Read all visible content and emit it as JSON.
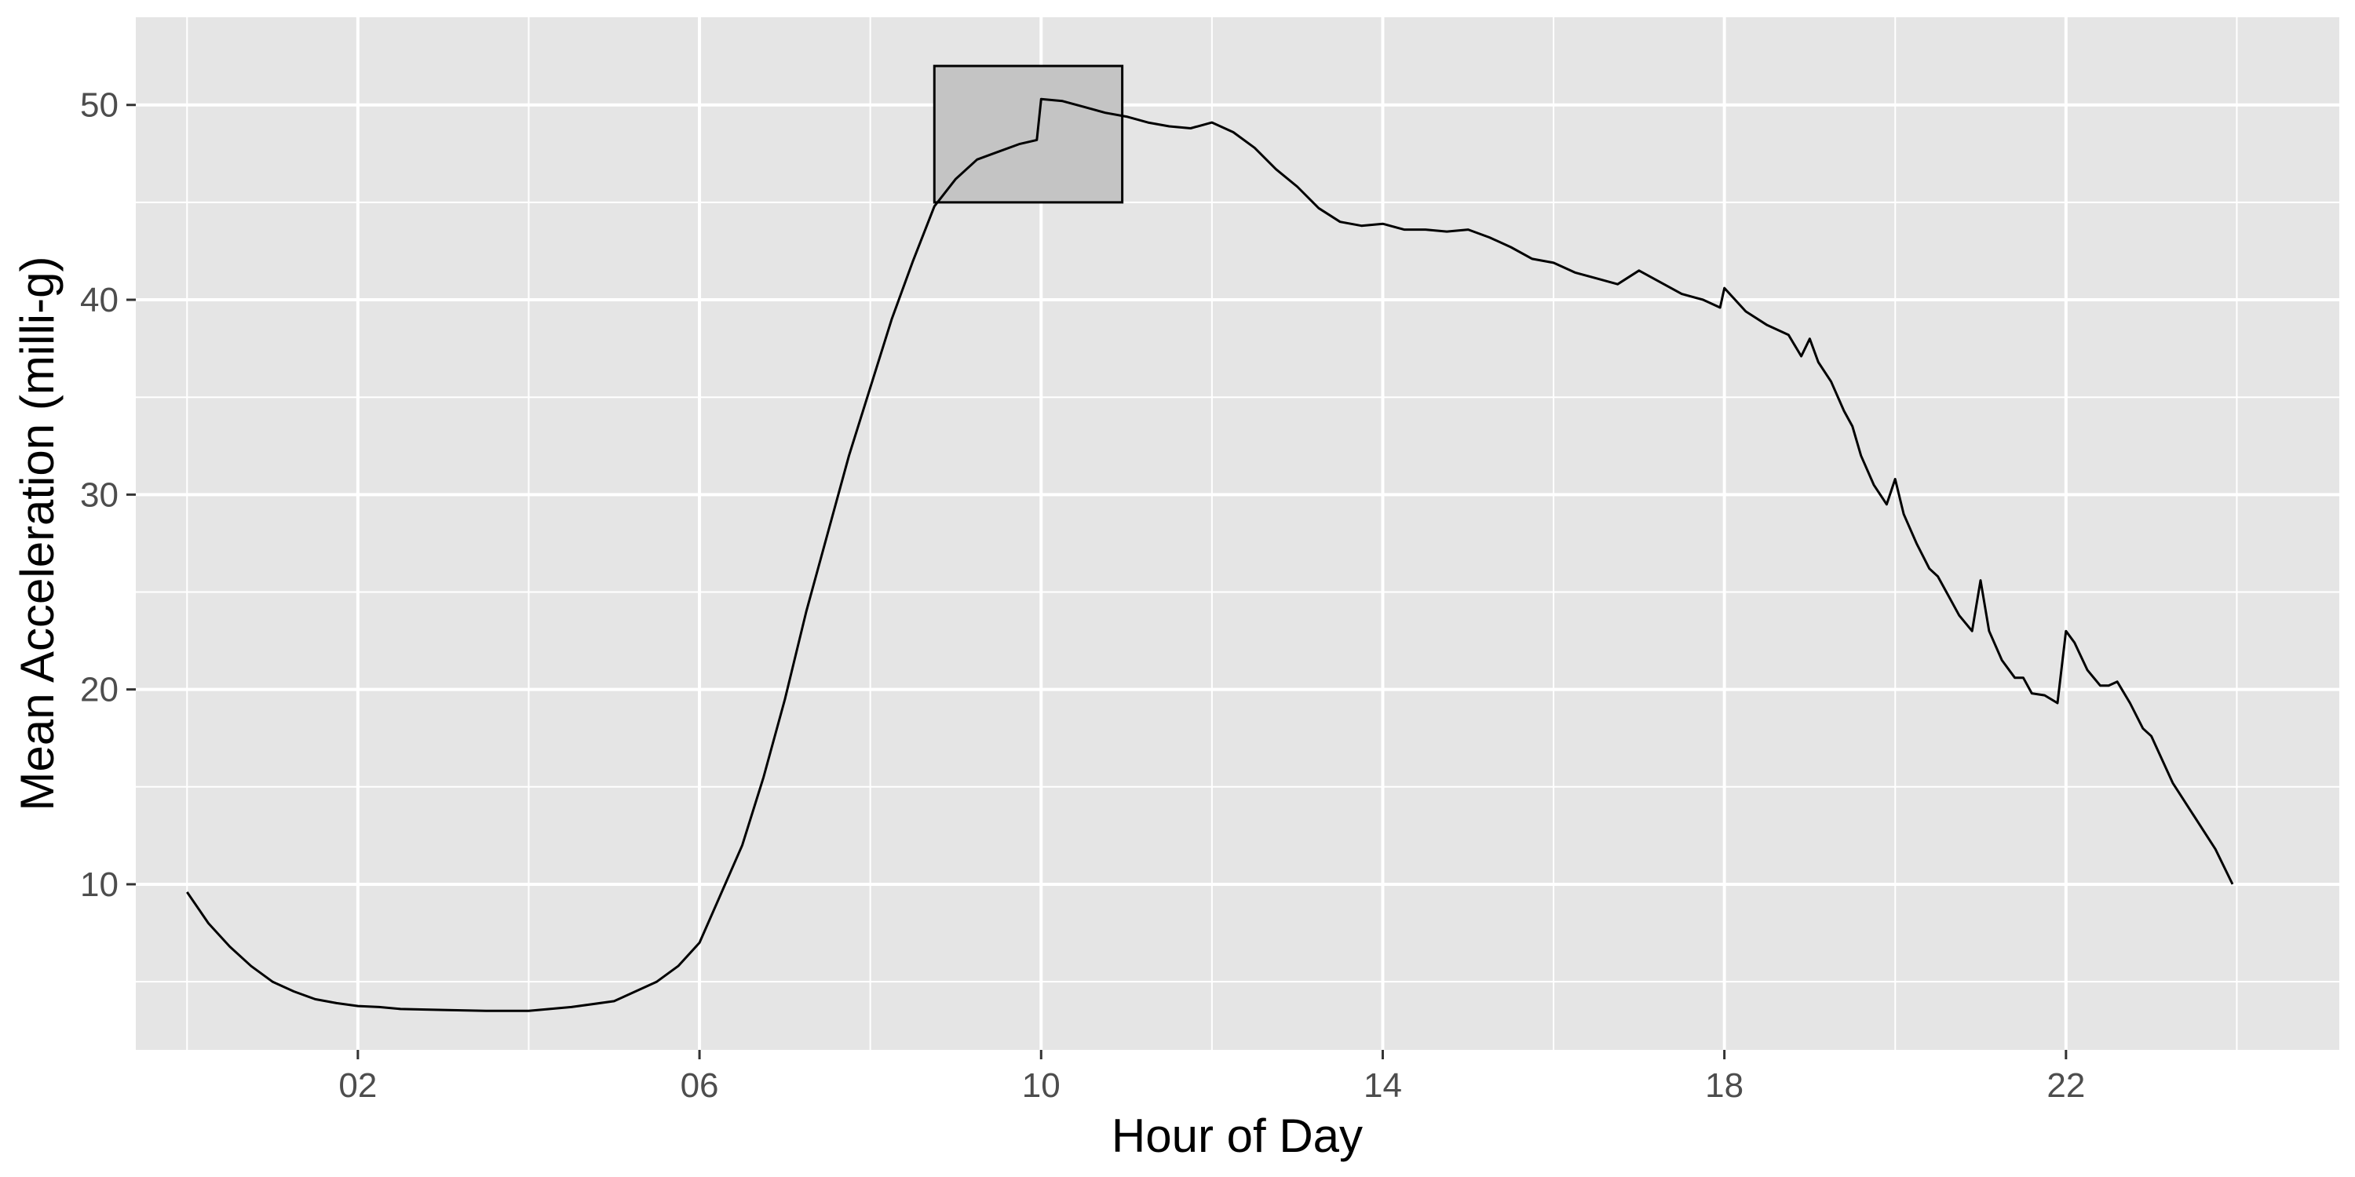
{
  "chart_data": {
    "type": "line",
    "title": "",
    "xlabel": "Hour of Day",
    "ylabel": "Mean Acceleration (milli-g)",
    "xlim": [
      -0.6,
      25.2
    ],
    "ylim": [
      1.5,
      54.5
    ],
    "x_ticks": [
      {
        "value": 2,
        "label": "02"
      },
      {
        "value": 6,
        "label": "06"
      },
      {
        "value": 10,
        "label": "10"
      },
      {
        "value": 14,
        "label": "14"
      },
      {
        "value": 18,
        "label": "18"
      },
      {
        "value": 22,
        "label": "22"
      }
    ],
    "x_minor_ticks": [
      0,
      4,
      8,
      12,
      16,
      20,
      24
    ],
    "y_ticks": [
      {
        "value": 10,
        "label": "10"
      },
      {
        "value": 20,
        "label": "20"
      },
      {
        "value": 30,
        "label": "30"
      },
      {
        "value": 40,
        "label": "40"
      },
      {
        "value": 50,
        "label": "50"
      }
    ],
    "y_minor_ticks": [
      5,
      15,
      25,
      35,
      45
    ],
    "grid": true,
    "panel_color": "#e5e5e5",
    "line_color": "#000000",
    "highlight_box": {
      "x": [
        8.75,
        10.95
      ],
      "y": [
        45,
        52
      ],
      "fill": "#c4c4c4",
      "stroke": "#000000"
    },
    "series": [
      {
        "x": [
          0.0,
          0.25,
          0.5,
          0.75,
          1.0,
          1.25,
          1.5,
          1.75,
          2.0,
          2.25,
          2.5,
          3.0,
          3.5,
          4.0,
          4.5,
          5.0,
          5.25,
          5.5,
          5.75,
          6.0,
          6.25,
          6.5,
          6.75,
          7.0,
          7.25,
          7.5,
          7.75,
          8.0,
          8.25,
          8.5,
          8.75,
          9.0,
          9.25,
          9.5,
          9.75,
          9.95,
          10.0,
          10.25,
          10.5,
          10.75,
          11.0,
          11.25,
          11.5,
          11.75,
          12.0,
          12.25,
          12.5,
          12.75,
          13.0,
          13.25,
          13.5,
          13.75,
          14.0,
          14.25,
          14.5,
          14.75,
          15.0,
          15.25,
          15.5,
          15.75,
          16.0,
          16.25,
          16.5,
          16.75,
          17.0,
          17.25,
          17.5,
          17.75,
          17.95,
          18.0,
          18.25,
          18.5,
          18.75,
          18.9,
          19.0,
          19.1,
          19.25,
          19.4,
          19.5,
          19.6,
          19.75,
          19.9,
          20.0,
          20.1,
          20.25,
          20.4,
          20.5,
          20.6,
          20.75,
          20.9,
          21.0,
          21.1,
          21.25,
          21.4,
          21.5,
          21.6,
          21.75,
          21.9,
          22.0,
          22.1,
          22.25,
          22.4,
          22.5,
          22.6,
          22.75,
          22.9,
          23.0,
          23.25,
          23.5,
          23.75,
          23.95
        ],
        "y": [
          9.6,
          8.0,
          6.8,
          5.8,
          5.0,
          4.5,
          4.1,
          3.9,
          3.75,
          3.7,
          3.6,
          3.55,
          3.5,
          3.5,
          3.7,
          4.0,
          4.5,
          5.0,
          5.8,
          7.0,
          9.5,
          12.0,
          15.5,
          19.5,
          24.0,
          28.0,
          32.0,
          35.5,
          39.0,
          42.0,
          44.8,
          46.2,
          47.2,
          47.6,
          48.0,
          48.2,
          50.3,
          50.2,
          49.9,
          49.6,
          49.4,
          49.1,
          48.9,
          48.8,
          49.1,
          48.6,
          47.8,
          46.7,
          45.8,
          44.7,
          44.0,
          43.8,
          43.9,
          43.6,
          43.6,
          43.5,
          43.6,
          43.2,
          42.7,
          42.1,
          41.9,
          41.4,
          41.1,
          40.8,
          41.5,
          40.9,
          40.3,
          40.0,
          39.6,
          40.6,
          39.4,
          38.7,
          38.2,
          37.1,
          38.0,
          36.8,
          35.8,
          34.3,
          33.5,
          32.0,
          30.5,
          29.5,
          30.8,
          29.0,
          27.5,
          26.2,
          25.8,
          25.0,
          23.8,
          23.0,
          25.6,
          23.0,
          21.5,
          20.6,
          20.6,
          19.8,
          19.7,
          19.3,
          23.0,
          22.4,
          21.0,
          20.2,
          20.2,
          20.4,
          19.3,
          18.0,
          17.6,
          15.2,
          13.5,
          11.8,
          10.0
        ]
      }
    ]
  }
}
